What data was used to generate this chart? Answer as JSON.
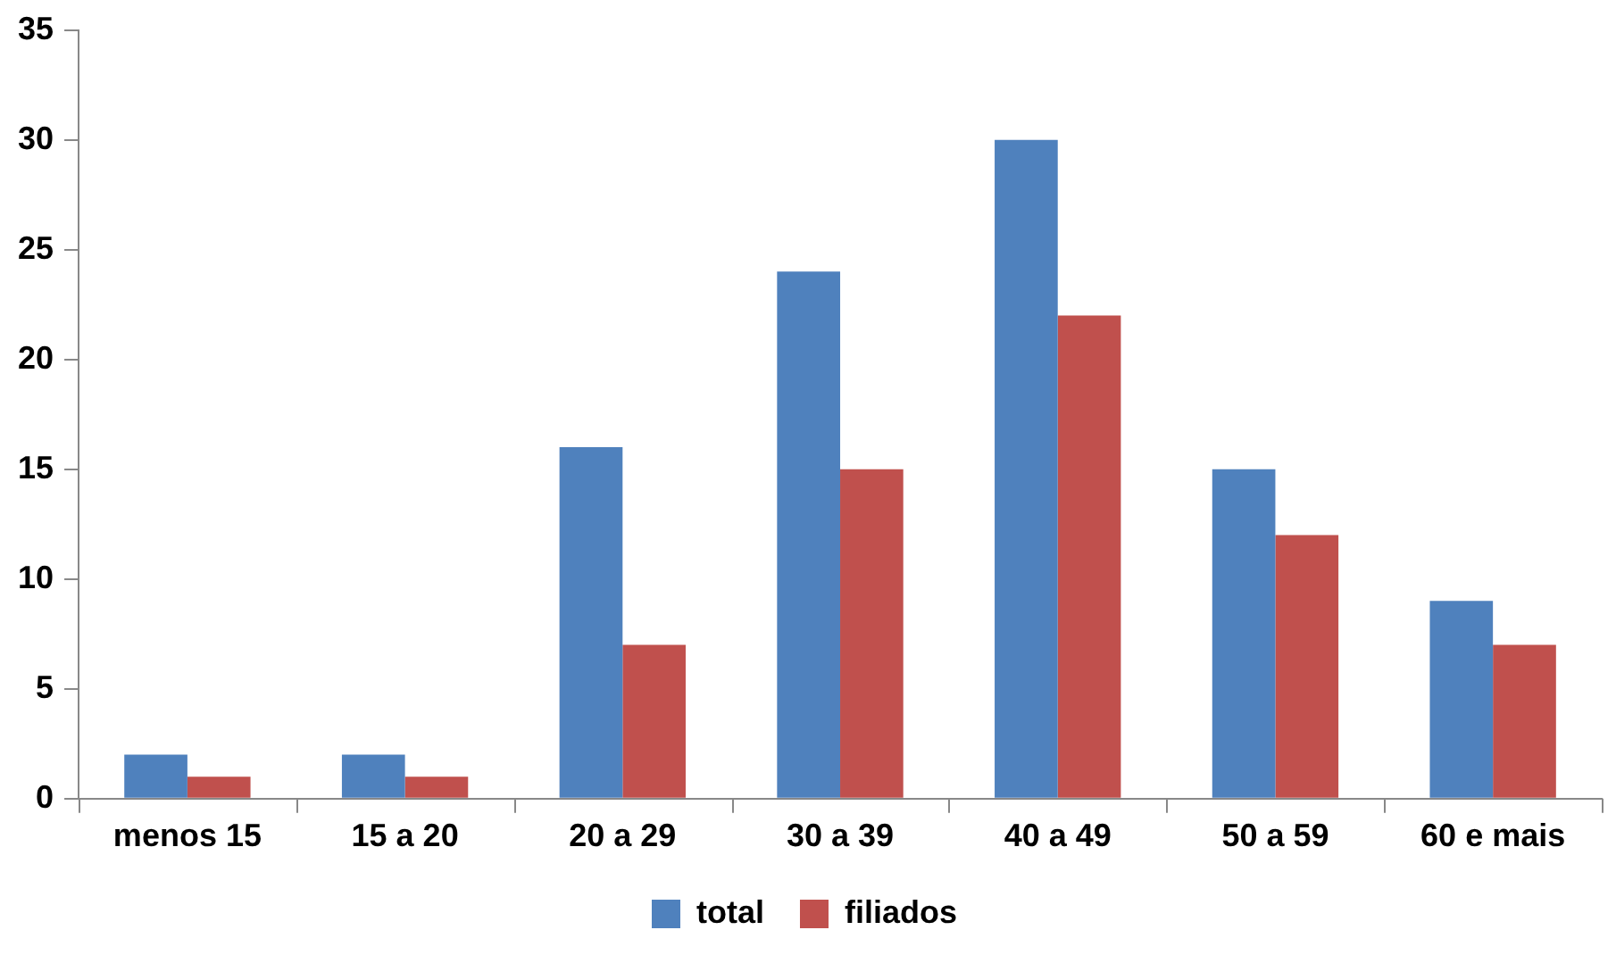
{
  "chart_data": {
    "type": "bar",
    "categories": [
      "menos 15",
      "15 a 20",
      "20 a 29",
      "30 a 39",
      "40 a 49",
      "50 a 59",
      "60 e mais"
    ],
    "series": [
      {
        "name": "total",
        "color": "#4f81bd",
        "values": [
          2,
          2,
          16,
          24,
          30,
          15,
          9
        ]
      },
      {
        "name": "filiados",
        "color": "#c0504d",
        "values": [
          1,
          1,
          7,
          15,
          22,
          12,
          7
        ]
      }
    ],
    "ylim": [
      0,
      35
    ],
    "yticks": [
      0,
      5,
      10,
      15,
      20,
      25,
      30,
      35
    ],
    "grid": false,
    "legend": "bottom"
  }
}
